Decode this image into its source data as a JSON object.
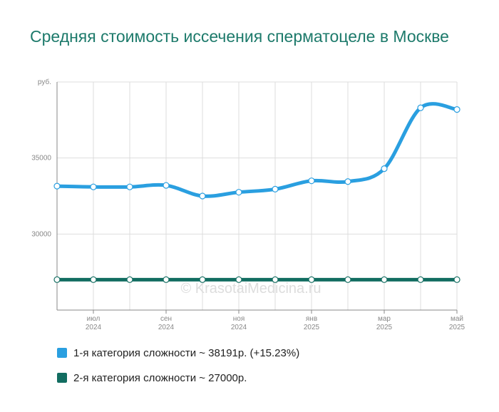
{
  "title": "Средняя стоимость иссечения сперматоцеле в Москве",
  "watermark": "© KrasotaiMedicina.ru",
  "colors": {
    "series1": "#2a9fe0",
    "series2": "#126d61",
    "grid": "#dddddd",
    "axis": "#888888"
  },
  "chart_data": {
    "type": "line",
    "title": "Средняя стоимость иссечения сперматоцеле в Москве",
    "ylabel": "руб.",
    "xlabel": "",
    "ylim": [
      25000,
      40000
    ],
    "y_ticks": [
      "30000",
      "35000"
    ],
    "grid": true,
    "legend_position": "bottom",
    "x": [
      "2024-06",
      "2024-07",
      "2024-08",
      "2024-09",
      "2024-10",
      "2024-11",
      "2024-12",
      "2025-01",
      "2025-02",
      "2025-03",
      "2025-04",
      "2025-05"
    ],
    "x_tick_labels": [
      {
        "month": "июл",
        "year": "2024"
      },
      {
        "month": "сен",
        "year": "2024"
      },
      {
        "month": "ноя",
        "year": "2024"
      },
      {
        "month": "янв",
        "year": "2025"
      },
      {
        "month": "мар",
        "year": "2025"
      },
      {
        "month": "май",
        "year": "2025"
      }
    ],
    "series": [
      {
        "name": "1-я категория сложности",
        "values": [
          33150,
          33100,
          33100,
          33200,
          32500,
          32750,
          32950,
          33500,
          33450,
          34300,
          38300,
          38191
        ],
        "legend": "1-я категория сложности ~ 38191р. (+15.23%)"
      },
      {
        "name": "2-я категория сложности",
        "values": [
          27000,
          27000,
          27000,
          27000,
          27000,
          27000,
          27000,
          27000,
          27000,
          27000,
          27000,
          27000
        ],
        "legend": "2-я категория сложности ~ 27000р."
      }
    ]
  }
}
